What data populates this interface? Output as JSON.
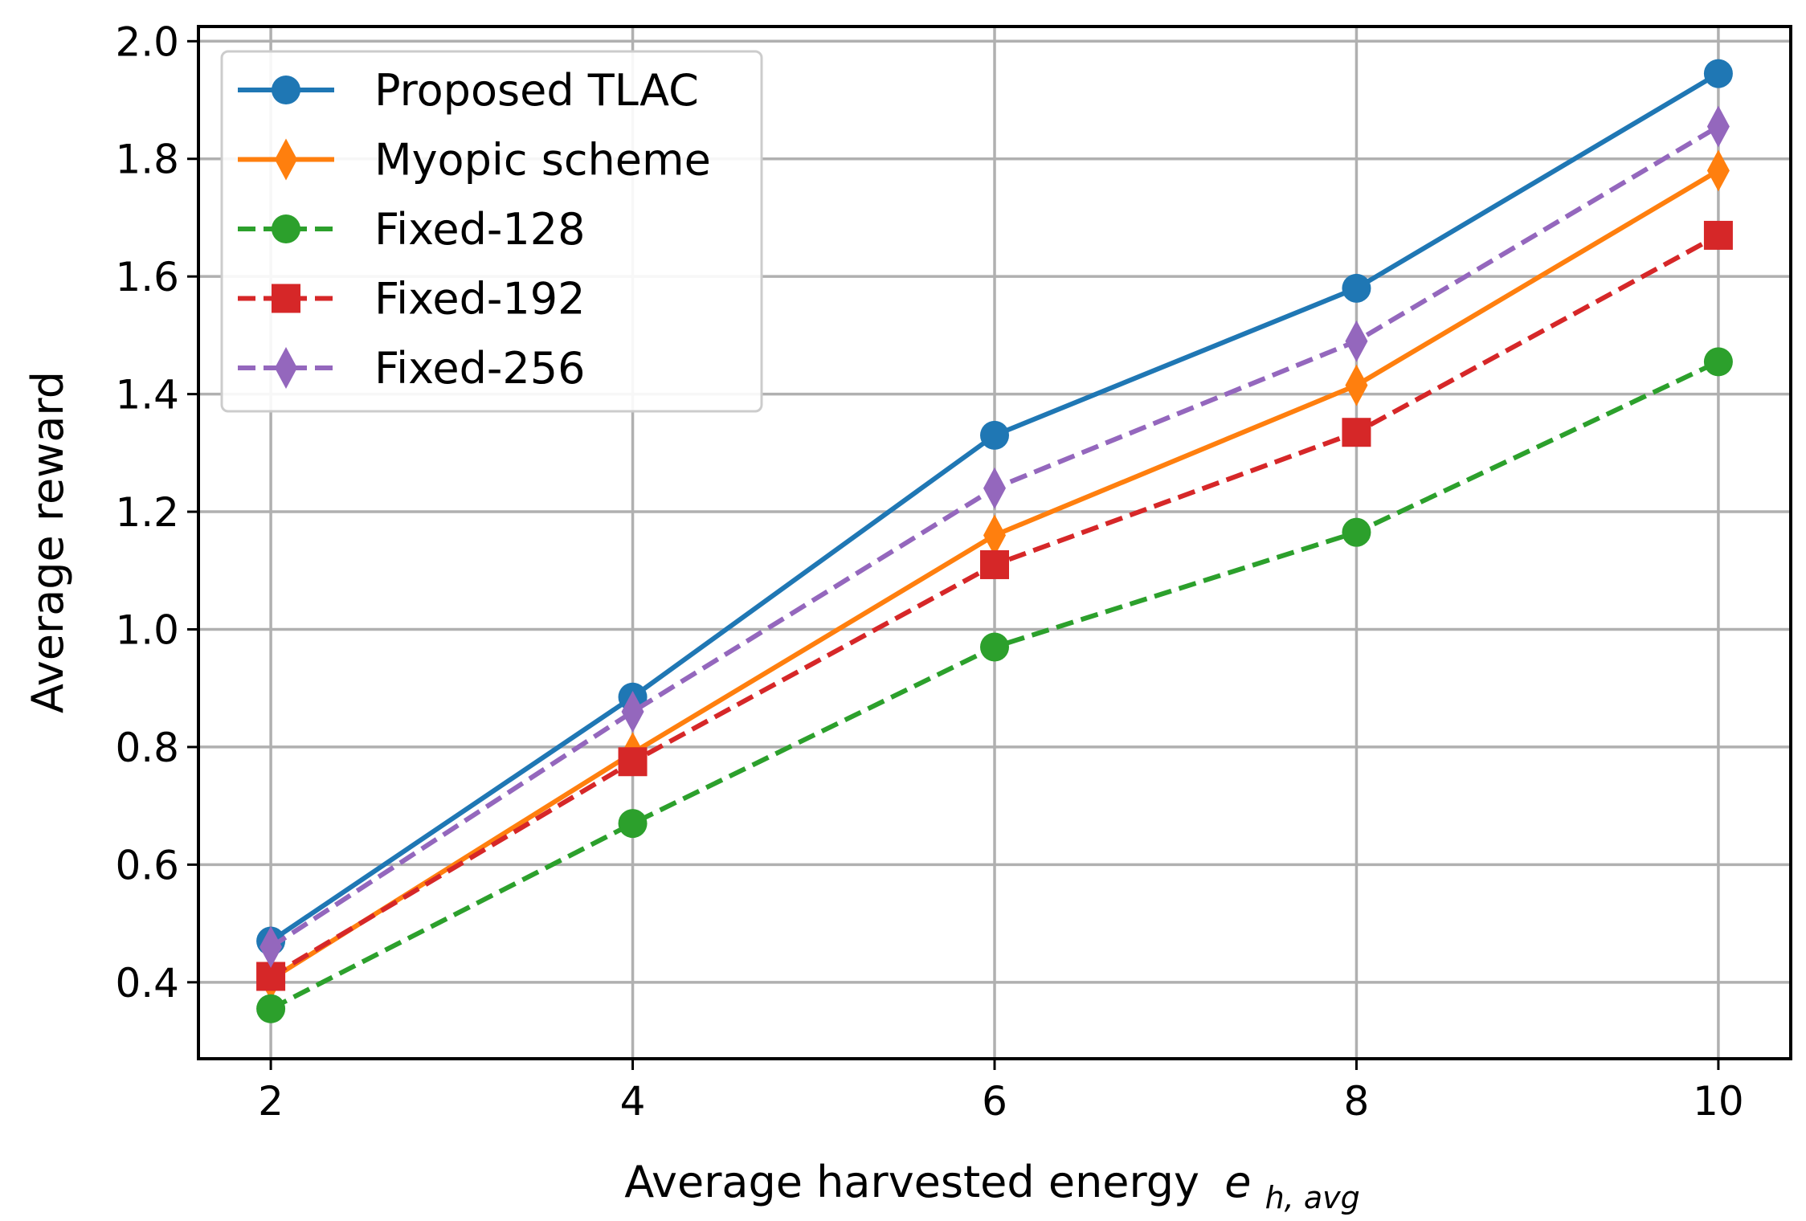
{
  "chart_data": {
    "type": "line",
    "x": [
      2,
      4,
      6,
      8,
      10
    ],
    "xlabel": "Average harvested energy",
    "xlabel_math": {
      "base": "e",
      "subscript": "h, avg"
    },
    "ylabel": "Average reward",
    "xlim": [
      1.6,
      10.4
    ],
    "ylim": [
      0.27,
      2.025
    ],
    "xticks": [
      "2",
      "4",
      "6",
      "8",
      "10"
    ],
    "yticks": [
      "0.4",
      "0.6",
      "0.8",
      "1.0",
      "1.2",
      "1.4",
      "1.6",
      "1.8",
      "2.0"
    ],
    "grid": true,
    "legend_position": "top-left",
    "series": [
      {
        "name": "Proposed TLAC",
        "values": [
          0.47,
          0.885,
          1.33,
          1.58,
          1.945
        ],
        "color": "#1f77b4",
        "linestyle": "solid",
        "marker": "circle"
      },
      {
        "name": "Myopic scheme",
        "values": [
          0.405,
          0.79,
          1.16,
          1.415,
          1.78
        ],
        "color": "#ff7f0e",
        "linestyle": "solid",
        "marker": "thin-diamond"
      },
      {
        "name": "Fixed-128",
        "values": [
          0.355,
          0.67,
          0.97,
          1.165,
          1.455
        ],
        "color": "#2ca02c",
        "linestyle": "dashed",
        "marker": "circle"
      },
      {
        "name": "Fixed-192",
        "values": [
          0.41,
          0.775,
          1.11,
          1.335,
          1.67
        ],
        "color": "#d62728",
        "linestyle": "dashed",
        "marker": "square"
      },
      {
        "name": "Fixed-256",
        "values": [
          0.46,
          0.86,
          1.24,
          1.49,
          1.855
        ],
        "color": "#9467bd",
        "linestyle": "dashed",
        "marker": "thin-diamond"
      }
    ]
  }
}
